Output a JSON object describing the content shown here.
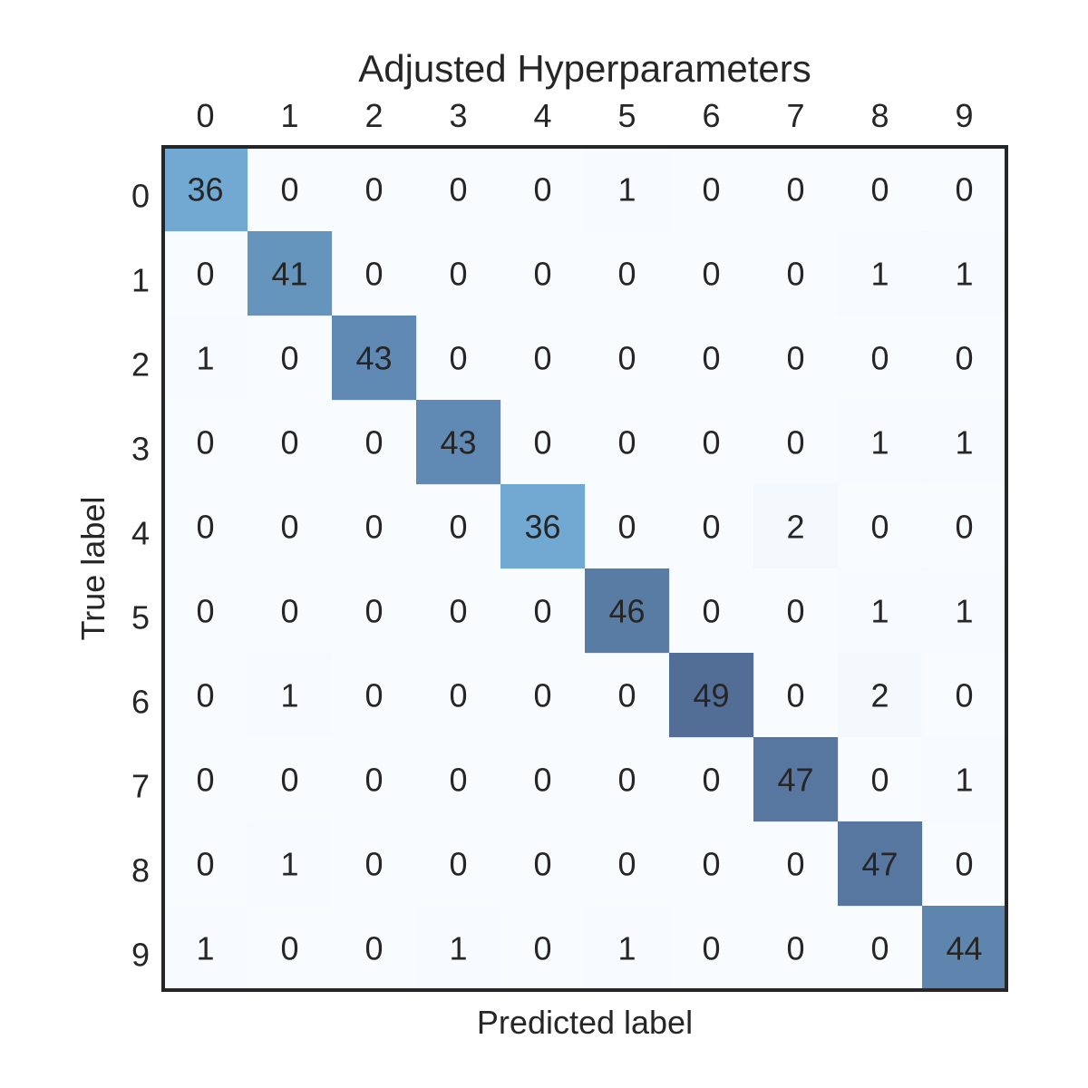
{
  "chart_data": {
    "type": "heatmap",
    "title": "Adjusted Hyperparameters",
    "xlabel": "Predicted label",
    "ylabel": "True label",
    "x_categories": [
      "0",
      "1",
      "2",
      "3",
      "4",
      "5",
      "6",
      "7",
      "8",
      "9"
    ],
    "y_categories": [
      "0",
      "1",
      "2",
      "3",
      "4",
      "5",
      "6",
      "7",
      "8",
      "9"
    ],
    "x_tick_position": "top",
    "colormap": "Blues",
    "value_range": [
      0,
      49
    ],
    "grid": false,
    "values": [
      [
        36,
        0,
        0,
        0,
        0,
        1,
        0,
        0,
        0,
        0
      ],
      [
        0,
        41,
        0,
        0,
        0,
        0,
        0,
        0,
        1,
        1
      ],
      [
        1,
        0,
        43,
        0,
        0,
        0,
        0,
        0,
        0,
        0
      ],
      [
        0,
        0,
        0,
        43,
        0,
        0,
        0,
        0,
        1,
        1
      ],
      [
        0,
        0,
        0,
        0,
        36,
        0,
        0,
        2,
        0,
        0
      ],
      [
        0,
        0,
        0,
        0,
        0,
        46,
        0,
        0,
        1,
        1
      ],
      [
        0,
        1,
        0,
        0,
        0,
        0,
        49,
        0,
        2,
        0
      ],
      [
        0,
        0,
        0,
        0,
        0,
        0,
        0,
        47,
        0,
        1
      ],
      [
        0,
        1,
        0,
        0,
        0,
        0,
        0,
        0,
        47,
        0
      ],
      [
        1,
        0,
        0,
        1,
        0,
        1,
        0,
        0,
        0,
        44
      ]
    ]
  }
}
